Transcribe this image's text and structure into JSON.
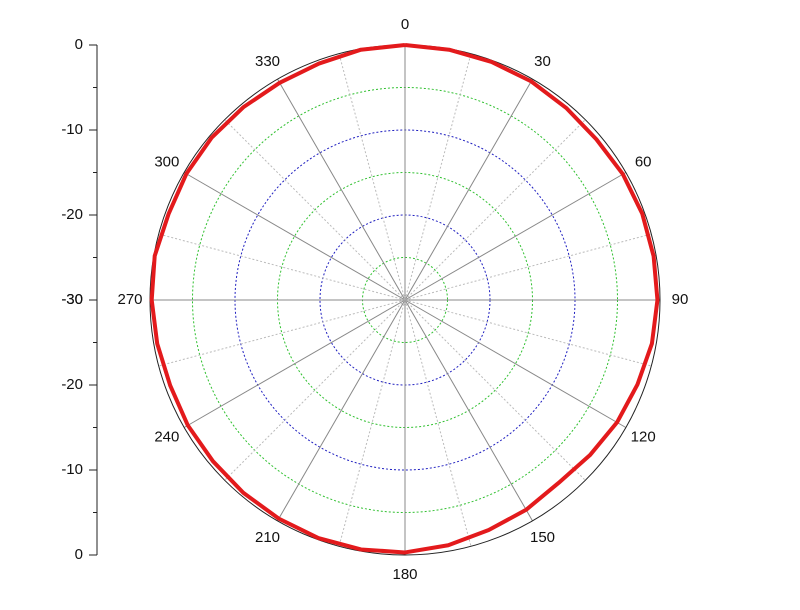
{
  "chart_data": {
    "type": "polar",
    "x": [
      0,
      10,
      20,
      30,
      40,
      50,
      60,
      70,
      80,
      90,
      100,
      110,
      120,
      130,
      140,
      150,
      160,
      170,
      180,
      190,
      200,
      210,
      220,
      230,
      240,
      250,
      260,
      270,
      280,
      290,
      300,
      310,
      320,
      330,
      340,
      350,
      360
    ],
    "series": [
      {
        "color": "#e31a1c",
        "values": [
          0,
          -0.1,
          -0.2,
          -0.3,
          -0.5,
          -0.6,
          -0.4,
          -0.3,
          -0.3,
          -0.3,
          -0.5,
          -0.9,
          -1.2,
          -1.6,
          -1.9,
          -1.5,
          -1.2,
          -0.7,
          -0.3,
          -0.2,
          -0.2,
          -0.3,
          -0.4,
          -0.5,
          -0.5,
          -0.6,
          -0.4,
          -0.2,
          -0.1,
          -0.4,
          -0.3,
          -0.3,
          -0.4,
          -0.5,
          -0.4,
          -0.1,
          0
        ]
      }
    ],
    "rlim": [
      -30,
      0
    ],
    "rticks": [
      -30,
      -20,
      -10,
      0
    ],
    "thetaticks": [
      0,
      30,
      60,
      90,
      120,
      150,
      180,
      210,
      240,
      270,
      300,
      330
    ]
  }
}
